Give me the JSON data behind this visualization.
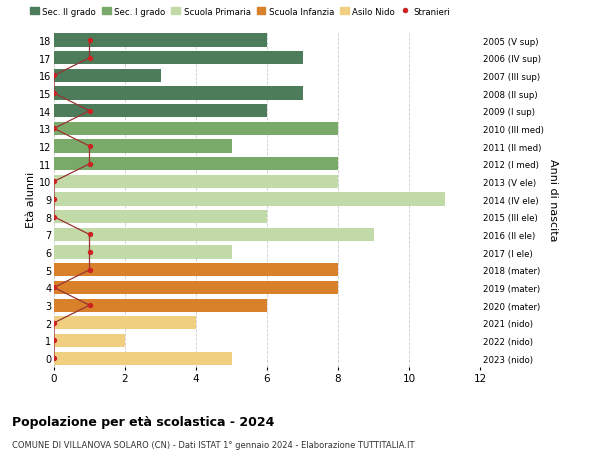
{
  "ages": [
    18,
    17,
    16,
    15,
    14,
    13,
    12,
    11,
    10,
    9,
    8,
    7,
    6,
    5,
    4,
    3,
    2,
    1,
    0
  ],
  "right_labels": [
    "2005 (V sup)",
    "2006 (IV sup)",
    "2007 (III sup)",
    "2008 (II sup)",
    "2009 (I sup)",
    "2010 (III med)",
    "2011 (II med)",
    "2012 (I med)",
    "2013 (V ele)",
    "2014 (IV ele)",
    "2015 (III ele)",
    "2016 (II ele)",
    "2017 (I ele)",
    "2018 (mater)",
    "2019 (mater)",
    "2020 (mater)",
    "2021 (nido)",
    "2022 (nido)",
    "2023 (nido)"
  ],
  "bar_values": [
    6,
    7,
    3,
    7,
    6,
    8,
    5,
    8,
    8,
    11,
    6,
    9,
    5,
    8,
    8,
    6,
    4,
    2,
    5
  ],
  "bar_colors": [
    "#4d7c5a",
    "#4d7c5a",
    "#4d7c5a",
    "#4d7c5a",
    "#4d7c5a",
    "#7aaa6a",
    "#7aaa6a",
    "#7aaa6a",
    "#c2d9a8",
    "#c2d9a8",
    "#c2d9a8",
    "#c2d9a8",
    "#c2d9a8",
    "#d9802a",
    "#d9802a",
    "#d9802a",
    "#f0d080",
    "#f0d080",
    "#f0d080"
  ],
  "stranieri_x": [
    1,
    1,
    0,
    0,
    1,
    0,
    1,
    1,
    0,
    0,
    0,
    1,
    1,
    1,
    0,
    1,
    0,
    0,
    0
  ],
  "legend_labels": [
    "Sec. II grado",
    "Sec. I grado",
    "Scuola Primaria",
    "Scuola Infanzia",
    "Asilo Nido",
    "Stranieri"
  ],
  "legend_colors": [
    "#4d7c5a",
    "#7aaa6a",
    "#c2d9a8",
    "#d9802a",
    "#f0d080",
    "#cc2222"
  ],
  "ylabel_left": "Età alunni",
  "ylabel_right": "Anni di nascita",
  "title": "Popolazione per età scolastica - 2024",
  "subtitle": "COMUNE DI VILLANOVA SOLARO (CN) - Dati ISTAT 1° gennaio 2024 - Elaborazione TUTTITALIA.IT",
  "xlim": [
    0,
    12
  ],
  "background_color": "#ffffff",
  "grid_color": "#cccccc"
}
